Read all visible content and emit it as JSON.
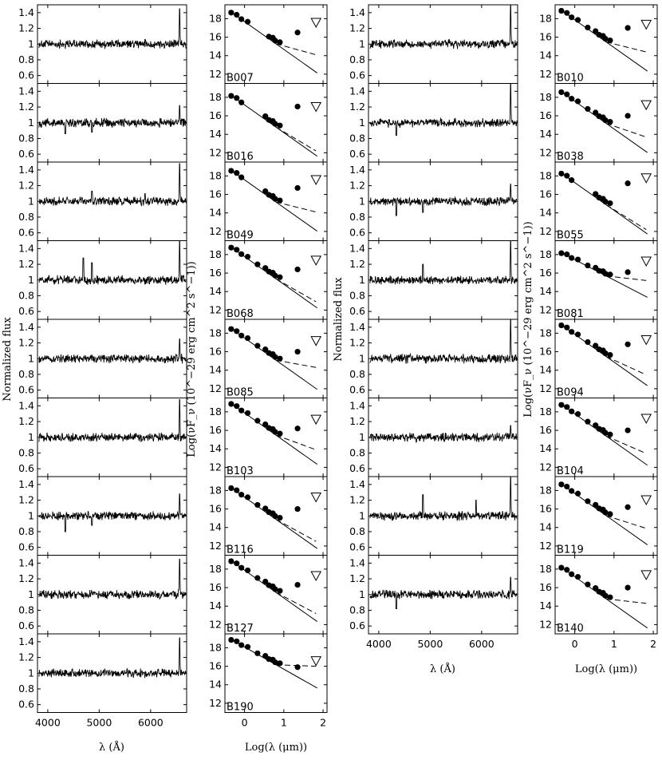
{
  "labels": {
    "spec_ylabel": "Normalized flux",
    "spec_xlabel": "λ (Å)",
    "sed_ylabel": "Log(νF_ν (10^−29 erg cm^2 s^−1))",
    "sed_xlabel": "Log(λ (μm))"
  },
  "chart_data": {
    "type": "multi-panel line/scatter",
    "spectra": {
      "xlim": [
        3800,
        6700
      ],
      "ylim": [
        0.5,
        1.5
      ],
      "xticks": [
        "4000",
        "5000",
        "6000"
      ],
      "yticks": [
        "0.6",
        "0.8",
        "1",
        "1.2",
        "1.4"
      ]
    },
    "sed": {
      "xlim": [
        -0.5,
        2.1
      ],
      "ylim": [
        11,
        19.5
      ],
      "xticks": [
        "0",
        "1",
        "2"
      ],
      "yticks": [
        "12",
        "14",
        "16",
        "18"
      ],
      "phot_x": [
        -0.34,
        -0.2,
        -0.08,
        0.08,
        0.33,
        0.53,
        0.62,
        0.72,
        0.78,
        0.9,
        1.35
      ],
      "upper_limit_x": 1.82
    },
    "panels": [
      {
        "name": "B007",
        "peak": 1.45,
        "lines": [
          [
            5890,
            1.06
          ]
        ],
        "y0": 18.7,
        "slope": -3.0,
        "irx": 16.5,
        "irdash": 14.1,
        "ul": 17.6,
        "lead": 4
      },
      {
        "name": "B016",
        "peak": 1.22,
        "lines": [
          [
            4340,
            0.86
          ],
          [
            4860,
            0.88
          ]
        ],
        "y0": 18.2,
        "slope": -3.0,
        "irx": 17.0,
        "irdash": 12.2,
        "ul": 17.0,
        "lead": 3
      },
      {
        "name": "B049",
        "peak": 1.48,
        "lines": [
          [
            4860,
            1.13
          ],
          [
            5890,
            1.1
          ]
        ],
        "y0": 18.6,
        "slope": -3.0,
        "irx": 16.7,
        "irdash": 14.1,
        "ul": 17.6,
        "lead": 3
      },
      {
        "name": "B068",
        "peak": 1.5,
        "lines": [
          [
            4690,
            1.28
          ],
          [
            4860,
            1.22
          ]
        ],
        "y0": 18.8,
        "slope": -3.0,
        "irx": 16.4,
        "irdash": 12.9,
        "ul": 17.4,
        "lead": 0
      },
      {
        "name": "B085",
        "peak": 1.25,
        "lines": [],
        "y0": 18.5,
        "slope": -3.0,
        "irx": 16.0,
        "irdash": 14.3,
        "ul": 17.2,
        "lead": 0
      },
      {
        "name": "B103",
        "peak": 1.48,
        "lines": [],
        "y0": 18.9,
        "slope": -3.0,
        "irx": 16.2,
        "irdash": 13.9,
        "ul": 17.2,
        "lead": 0
      },
      {
        "name": "B116",
        "peak": 1.28,
        "lines": [
          [
            4340,
            0.8
          ],
          [
            4860,
            0.88
          ]
        ],
        "y0": 18.3,
        "slope": -3.0,
        "irx": 16.0,
        "irdash": 12.5,
        "ul": 17.3,
        "lead": 0
      },
      {
        "name": "B127",
        "peak": 1.45,
        "lines": [],
        "y0": 18.9,
        "slope": -3.0,
        "irx": 16.3,
        "irdash": 13.2,
        "ul": 17.3,
        "lead": 0
      },
      {
        "name": "B190",
        "peak": 1.45,
        "lines": [],
        "y0": 18.9,
        "slope": -2.4,
        "irx": 15.9,
        "irdash": 16.0,
        "ul": 16.6,
        "lead": 0
      },
      {
        "name": "B010",
        "peak": 1.55,
        "lines": [],
        "y0": 18.9,
        "slope": -3.0,
        "irx": 17.0,
        "irdash": 14.4,
        "ul": 17.4,
        "lead": 0
      },
      {
        "name": "B038",
        "peak": 1.55,
        "lines": [
          [
            4340,
            0.84
          ]
        ],
        "y0": 18.6,
        "slope": -3.0,
        "irx": 16.0,
        "irdash": 13.7,
        "ul": 17.2,
        "lead": 0
      },
      {
        "name": "B055",
        "peak": 1.22,
        "lines": [
          [
            4340,
            0.82
          ],
          [
            4860,
            0.86
          ]
        ],
        "y0": 18.3,
        "slope": -3.0,
        "irx": 17.2,
        "irdash": 12.2,
        "ul": 17.8,
        "lead": 3
      },
      {
        "name": "B081",
        "peak": 1.55,
        "lines": [
          [
            4860,
            1.2
          ]
        ],
        "y0": 18.2,
        "slope": -2.2,
        "irx": 16.1,
        "irdash": 15.2,
        "ul": 17.3,
        "lead": 0
      },
      {
        "name": "B094",
        "peak": 1.5,
        "lines": [],
        "y0": 18.9,
        "slope": -3.0,
        "irx": 16.8,
        "irdash": 13.5,
        "ul": 17.3,
        "lead": 0
      },
      {
        "name": "B104",
        "peak": 1.15,
        "lines": [],
        "y0": 18.8,
        "slope": -3.0,
        "irx": 16.0,
        "irdash": 13.5,
        "ul": 17.3,
        "lead": 0
      },
      {
        "name": "B119",
        "peak": 1.5,
        "lines": [
          [
            4860,
            1.27
          ],
          [
            5890,
            1.2
          ]
        ],
        "y0": 18.7,
        "slope": -3.0,
        "irx": 16.2,
        "irdash": 13.9,
        "ul": 17.0,
        "lead": 0
      },
      {
        "name": "B140",
        "peak": 1.22,
        "lines": [
          [
            4340,
            0.82
          ]
        ],
        "y0": 18.2,
        "slope": -3.0,
        "irx": 16.0,
        "irdash": 14.3,
        "ul": 17.4,
        "lead": 0
      }
    ]
  }
}
